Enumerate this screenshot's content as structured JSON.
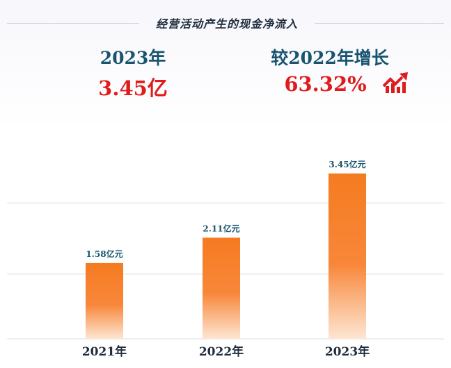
{
  "title": "经营活动产生的现金净流入",
  "kpis": {
    "year_label": "2023年",
    "year_value": "3.45亿",
    "growth_label": "较2022年增长",
    "growth_value": "63.32%"
  },
  "icons": {
    "trend": "trend-up-icon"
  },
  "colors": {
    "bar_top": "#f57b20",
    "bar_bottom": "#fde6d3",
    "accent_red": "#e01b1b",
    "label_blue": "#18546f",
    "grid": "#dcdde3"
  },
  "chart_data": {
    "type": "bar",
    "categories": [
      "2021年",
      "2022年",
      "2023年"
    ],
    "values": [
      1.58,
      2.11,
      3.45
    ],
    "value_labels": [
      "1.58亿元",
      "2.11亿元",
      "3.45亿元"
    ],
    "unit": "亿元",
    "ylim": [
      0,
      4.2
    ],
    "grid": true,
    "legend": "none"
  }
}
